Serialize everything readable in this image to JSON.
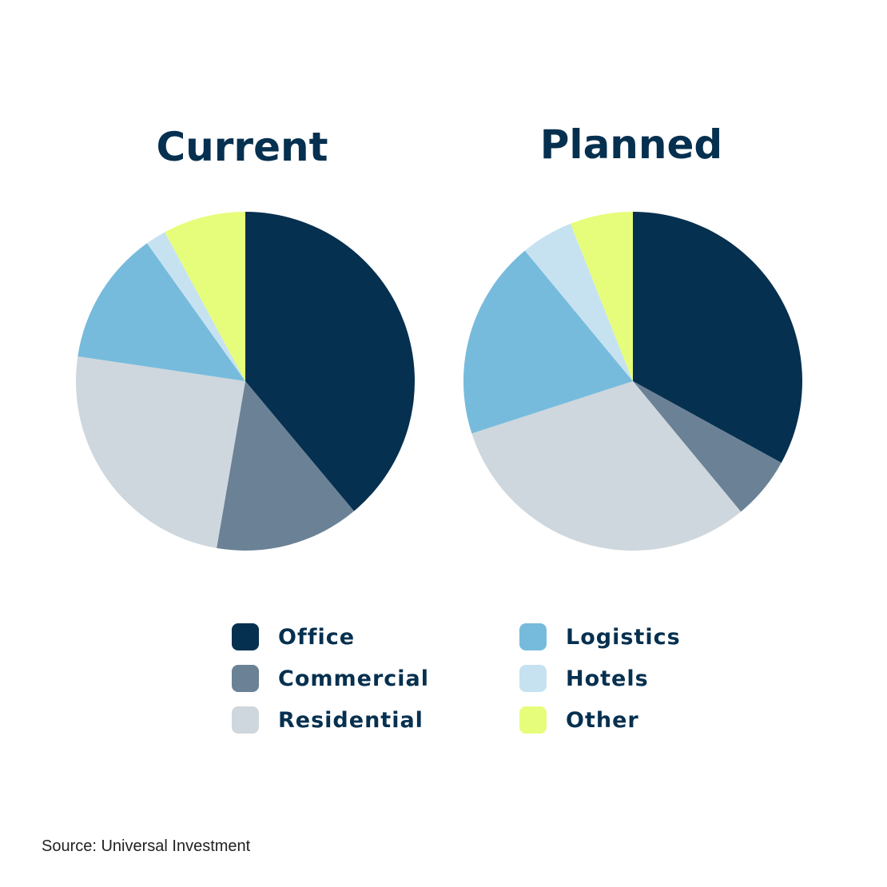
{
  "chart_data": {
    "type": "pie",
    "categories": [
      "Office",
      "Commercial",
      "Residential",
      "Logistics",
      "Hotels",
      "Other"
    ],
    "colors": [
      "#06304f",
      "#6b8196",
      "#ced7dd",
      "#77bbdc",
      "#c6e2f1",
      "#e6fd7b"
    ],
    "series": [
      {
        "name": "Current",
        "values": [
          39.5,
          14,
          25,
          13,
          2,
          8
        ]
      },
      {
        "name": "Planned",
        "values": [
          33,
          6,
          31,
          19,
          5,
          6
        ]
      }
    ]
  },
  "legend": {
    "items": [
      {
        "label": "Office"
      },
      {
        "label": "Logistics"
      },
      {
        "label": "Commercial"
      },
      {
        "label": "Hotels"
      },
      {
        "label": "Residential"
      },
      {
        "label": "Other"
      }
    ]
  },
  "source": "Source: Universal Investment"
}
